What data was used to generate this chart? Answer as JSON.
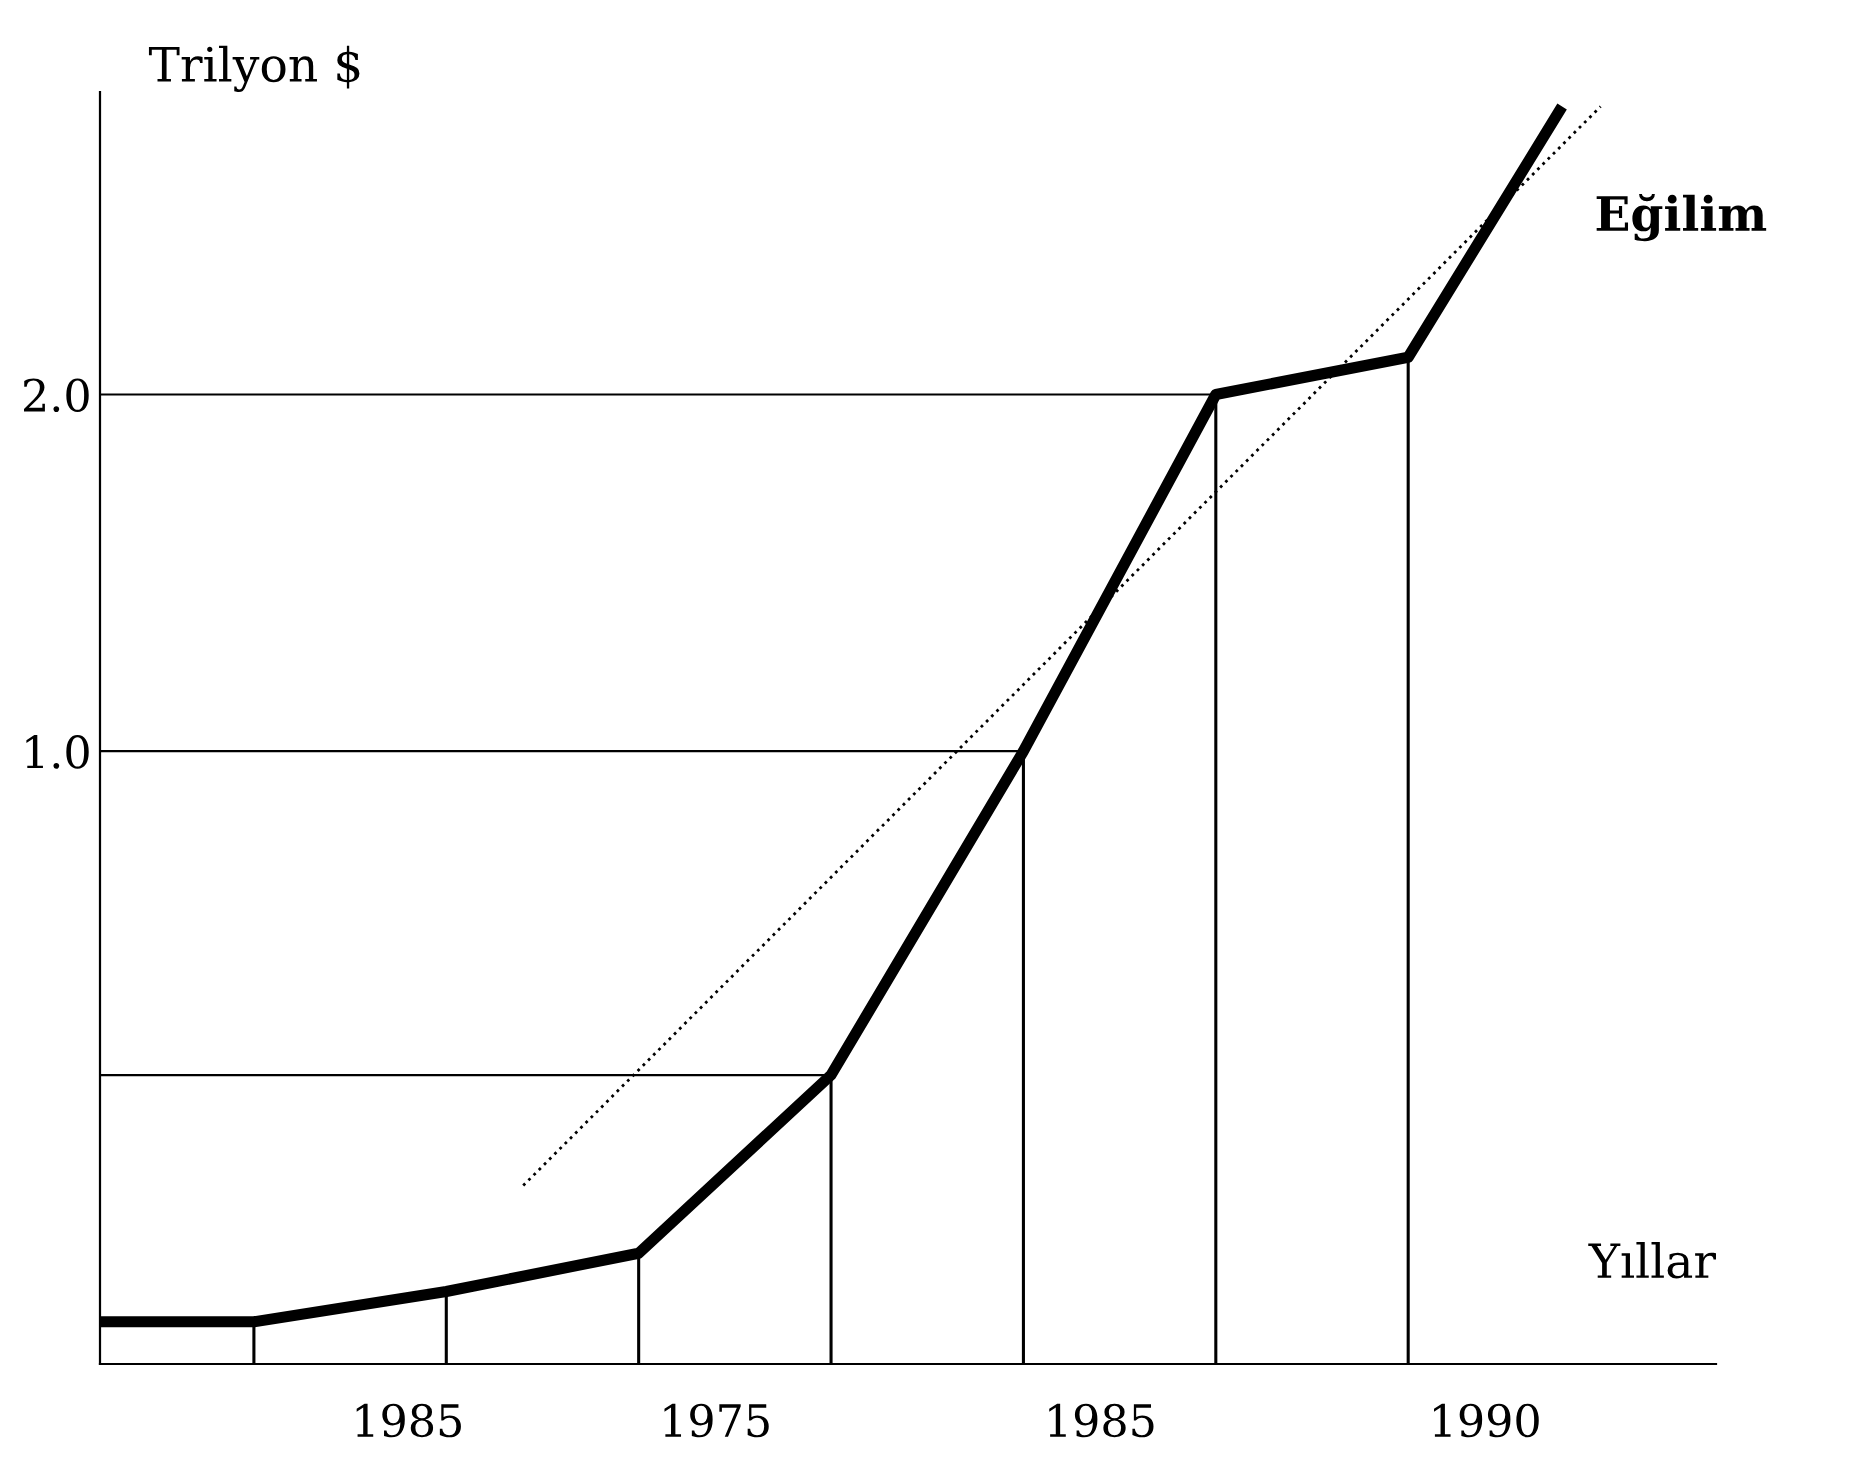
{
  "chart_data": {
    "type": "line",
    "xlabel": "Yıllar",
    "ylabel": "Trilyon $",
    "log": "y",
    "categories": [
      null,
      null,
      null,
      null,
      null,
      null,
      null,
      null,
      "1985",
      null,
      null,
      null,
      null,
      null,
      null,
      null,
      "1975",
      null,
      null,
      null,
      null,
      null,
      null,
      null,
      null,
      null,
      "1985",
      null,
      null,
      null,
      null,
      null,
      null,
      null,
      null,
      null,
      "1990",
      null,
      null,
      null,
      null,
      null,
      null
    ],
    "ylim": [
      0.304,
      3.6
    ],
    "yticks": [
      {
        "value": 1.0,
        "label": "1.0"
      },
      {
        "value": 2.0,
        "label": "2.0"
      }
    ],
    "grid": false,
    "legend": false,
    "series": [
      {
        "color": "#000000",
        "line_style": "solid",
        "values": [
          0.33,
          null,
          null,
          null,
          0.33,
          null,
          null,
          null,
          null,
          0.35,
          null,
          null,
          null,
          null,
          0.377,
          null,
          null,
          null,
          null,
          0.533,
          null,
          null,
          null,
          null,
          1.0,
          null,
          null,
          null,
          null,
          2.0,
          null,
          null,
          null,
          null,
          2.15,
          null,
          null,
          null,
          3.5,
          null,
          null,
          null,
          null
        ]
      },
      {
        "name": "Eğilim",
        "color": "#000000",
        "line_style": "dotted",
        "values": [
          null,
          null,
          null,
          null,
          null,
          null,
          null,
          null,
          null,
          null,
          null,
          0.43,
          null,
          null,
          null,
          null,
          null,
          null,
          null,
          null,
          null,
          null,
          null,
          null,
          null,
          null,
          null,
          null,
          null,
          null,
          null,
          null,
          null,
          null,
          null,
          null,
          null,
          null,
          null,
          3.5,
          null,
          null,
          null
        ]
      },
      {
        "type": "bar",
        "color": "#000000",
        "values": [
          null,
          null,
          null,
          null,
          0.33,
          null,
          null,
          null,
          null,
          0.35,
          null,
          null,
          null,
          null,
          0.377,
          null,
          null,
          null,
          null,
          0.533,
          null,
          null,
          null,
          null,
          1.0,
          null,
          null,
          null,
          null,
          2.0,
          null,
          null,
          null,
          null,
          2.15,
          null,
          null,
          null,
          null,
          null,
          null,
          null,
          null
        ]
      }
    ],
    "ref_lines": [
      {
        "axis": "y",
        "value": 2.0
      },
      {
        "axis": "y",
        "value": 1.0
      },
      {
        "axis": "y",
        "value": 0.533
      }
    ]
  }
}
